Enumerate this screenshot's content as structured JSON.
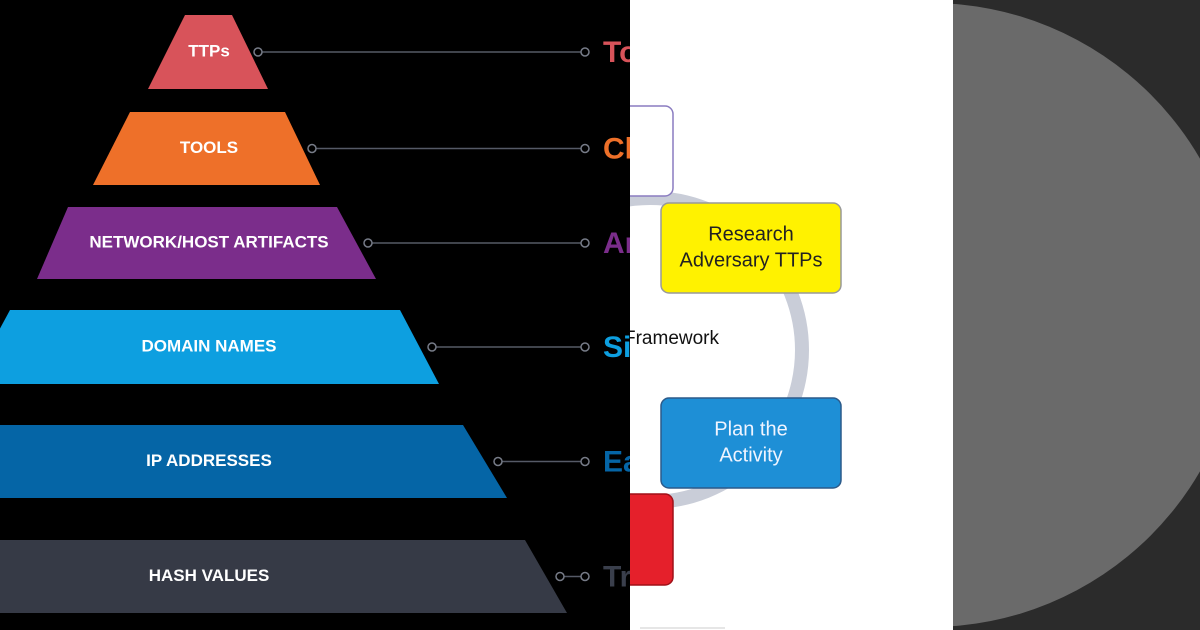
{
  "pyramid": {
    "levels": [
      {
        "label": "TTPs",
        "side": "To"
      },
      {
        "label": "TOOLS",
        "side": "Ch"
      },
      {
        "label": "NETWORK/HOST ARTIFACTS",
        "side": "An"
      },
      {
        "label": "DOMAIN NAMES",
        "side": "Si"
      },
      {
        "label": "IP ADDRESSES",
        "side": "Ea"
      },
      {
        "label": "HASH VALUES",
        "side": "Tr"
      }
    ]
  },
  "framework": {
    "title": "Framework",
    "boxes": [
      {
        "lines": [
          "Research",
          "Adversary TTPs"
        ]
      },
      {
        "lines": [
          "Plan the",
          "Activity"
        ]
      }
    ]
  }
}
